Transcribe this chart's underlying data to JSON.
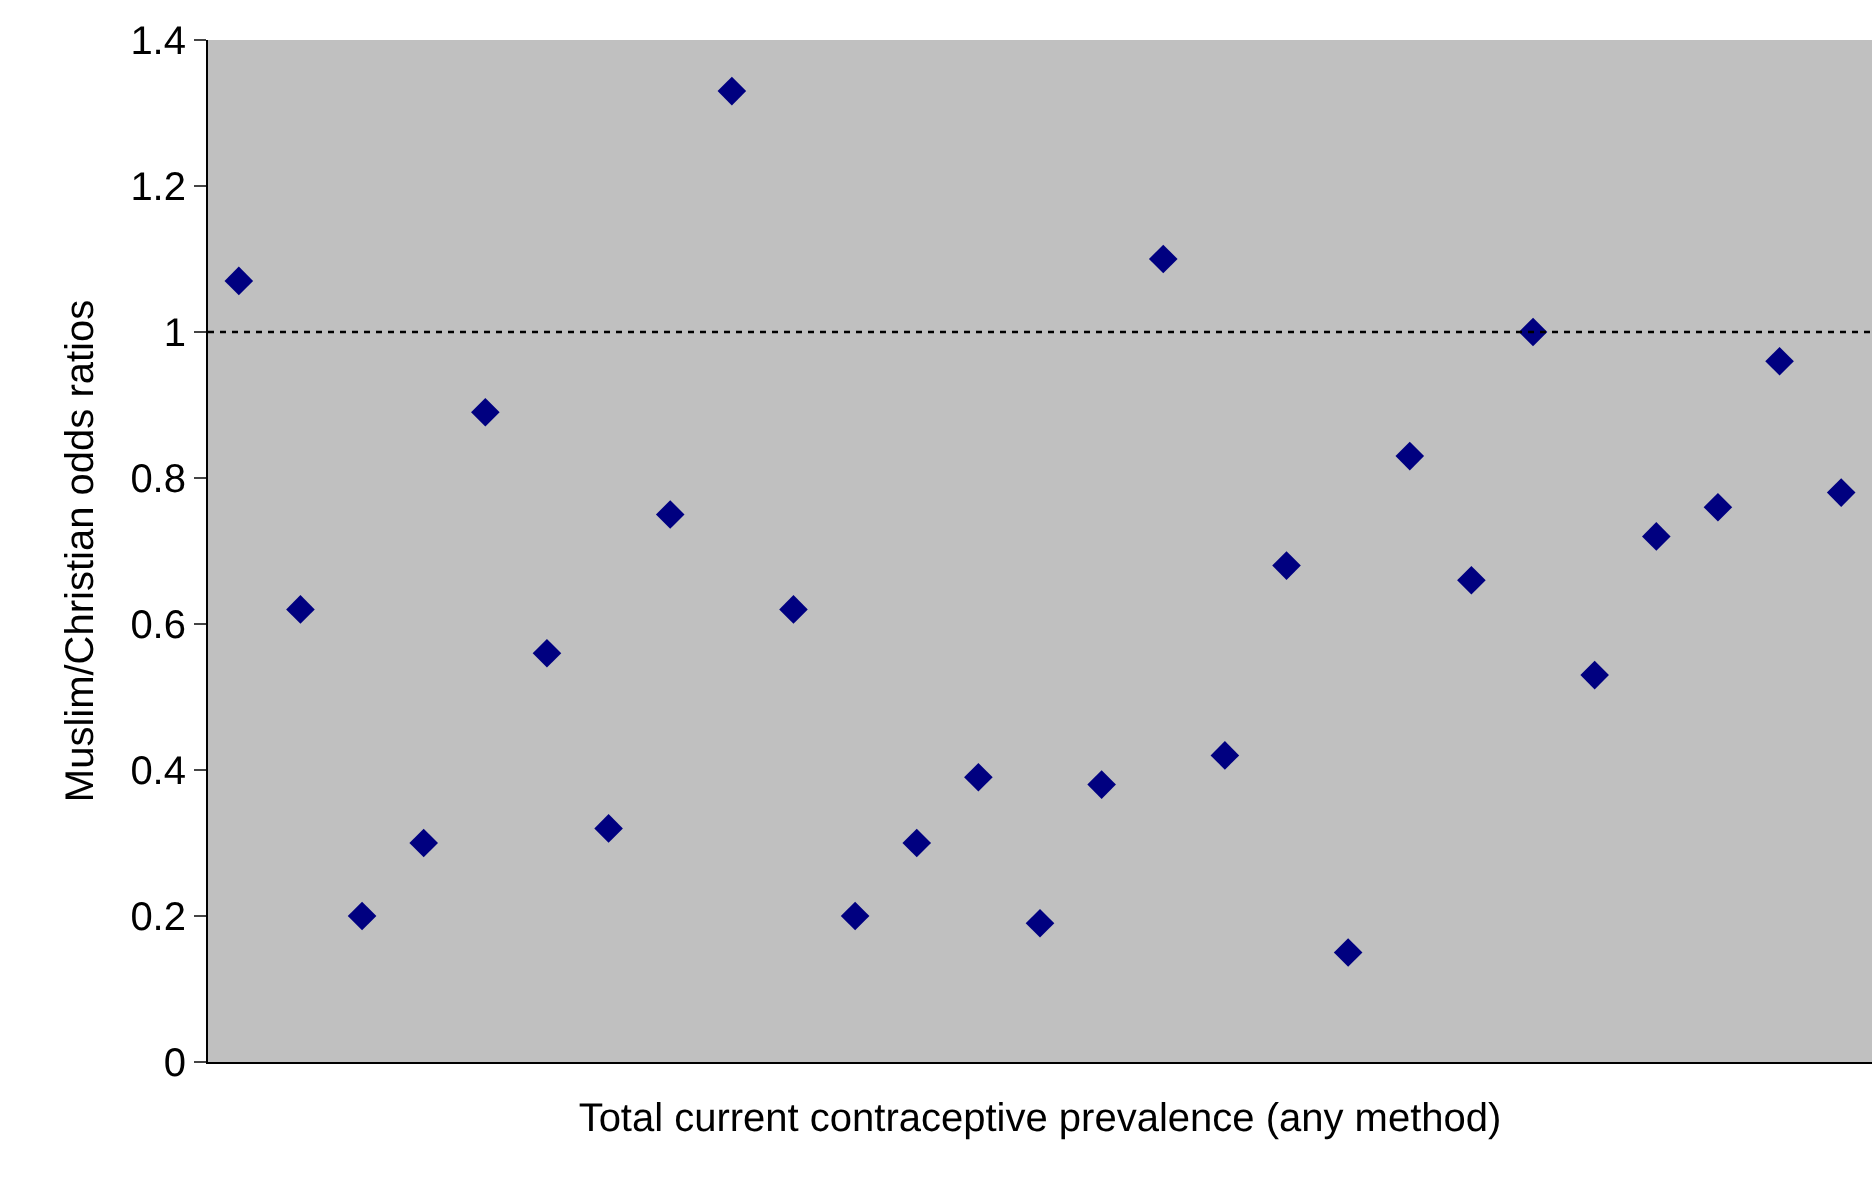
{
  "chart_data": {
    "type": "scatter",
    "xlabel": "Total current contraceptive prevalence (any method)",
    "ylabel": "Muslim/Christian odds ratios",
    "categories": [
      null,
      null,
      null,
      null,
      null,
      null,
      null,
      null,
      null,
      null,
      null,
      null,
      null,
      null,
      null,
      null,
      null,
      null,
      null,
      null,
      null,
      null,
      null,
      null,
      null,
      null,
      null
    ],
    "values": [
      1.07,
      0.62,
      0.2,
      0.3,
      0.89,
      0.56,
      0.32,
      0.75,
      1.33,
      0.62,
      0.2,
      0.3,
      0.39,
      0.19,
      0.38,
      1.1,
      0.42,
      0.68,
      0.15,
      0.83,
      0.66,
      1.0,
      0.53,
      0.72,
      0.76,
      0.96,
      0.78
    ],
    "color": "#000080",
    "marker": "diamond",
    "ylim": [
      0,
      1.4
    ],
    "yticks": [
      0,
      0.2,
      0.4,
      0.6,
      0.8,
      1,
      1.2,
      1.4
    ],
    "tick_labels": "y",
    "grid": false,
    "ref_lines": [
      {
        "axis": "y",
        "value": 1,
        "line_style": "dotted",
        "color": "#000000"
      }
    ]
  }
}
